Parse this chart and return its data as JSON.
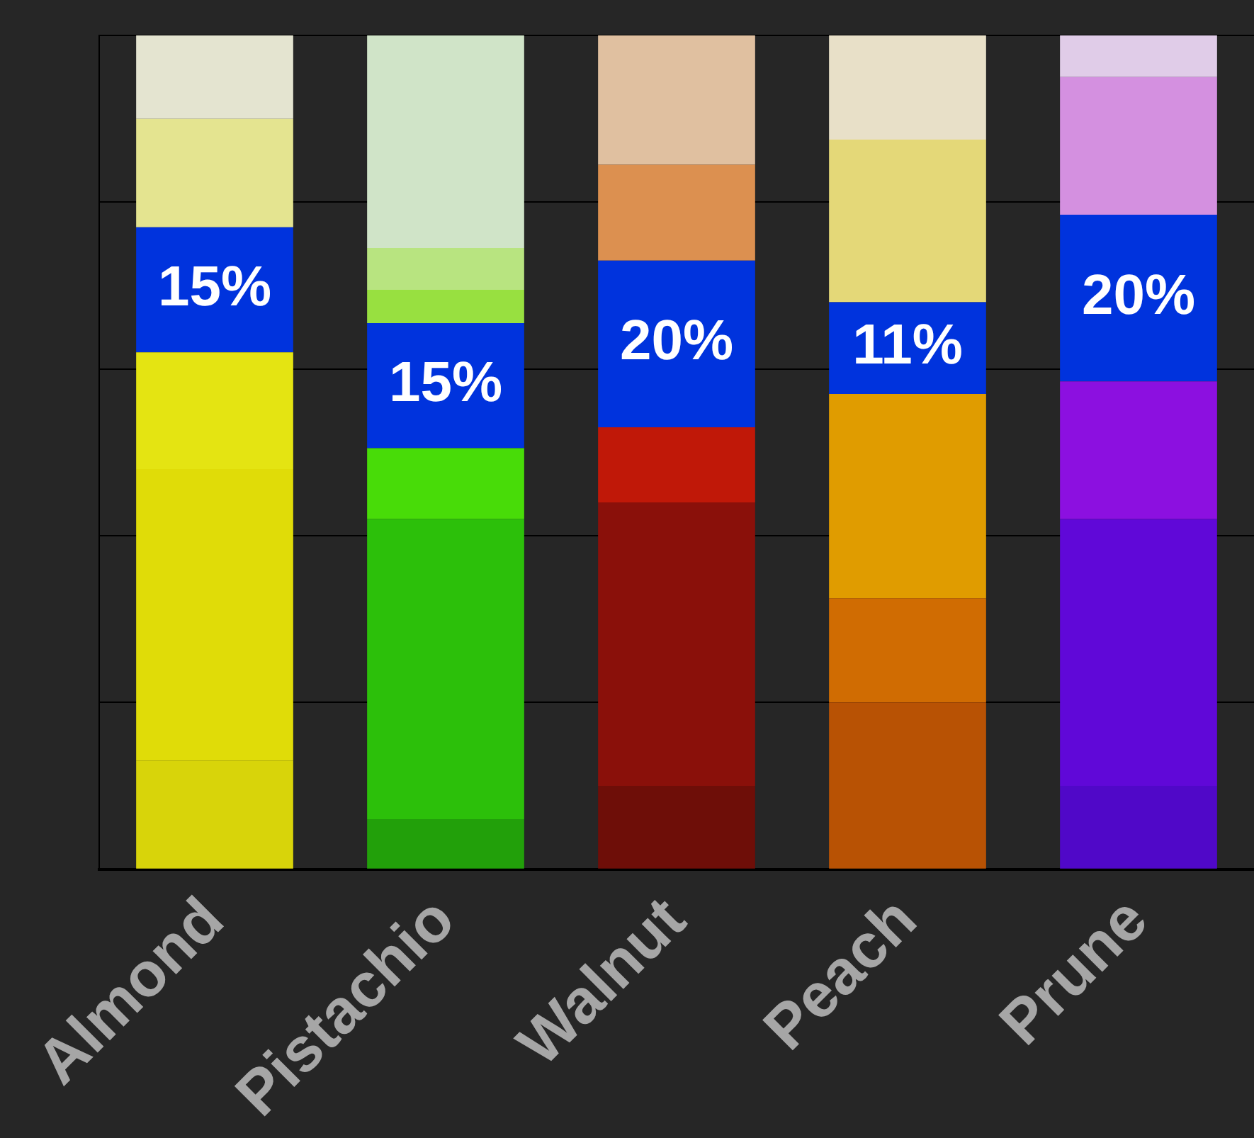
{
  "chart_data": {
    "type": "bar",
    "stacked": true,
    "categories": [
      "Almond",
      "Pistachio",
      "Walnut",
      "Peach",
      "Prune"
    ],
    "series": [
      {
        "colors": [
          "#d8d40a",
          "#22a00a",
          "#6e0e08",
          "#b85204",
          "#5008c8"
        ],
        "values": [
          13,
          6,
          10,
          20,
          10
        ]
      },
      {
        "colors": [
          "#e0dc08",
          "#2cc00a",
          "#8a100a",
          "#d06c02",
          "#6008d8"
        ],
        "values": [
          35,
          36,
          34,
          12.5,
          32
        ]
      },
      {
        "colors": [
          "#e4e412",
          "#48dc08",
          "#c01808",
          "#e09c00",
          "#8c10e0"
        ],
        "values": [
          14,
          8.5,
          9,
          24.5,
          16.5
        ]
      },
      {
        "color": "#0033dd",
        "values": [
          15,
          15,
          20,
          11,
          20
        ],
        "value_labels": [
          "15%",
          "15%",
          "20%",
          "11%",
          "20%"
        ]
      },
      {
        "colors": [
          "#e4e490",
          "#98e040",
          "#dc9050",
          "#e4d878",
          "#d490e0"
        ],
        "values": [
          13,
          4,
          11.5,
          19.5,
          16.5
        ]
      },
      {
        "colors": [
          "#e4e4d0",
          "#b8e480",
          "#e0c0a0",
          "#e8e0c8",
          "#e0cce8"
        ],
        "values": [
          10,
          5,
          15.5,
          12.5,
          5
        ]
      },
      {
        "colors": [
          "#e4e4d0",
          "#d0e4c8",
          "#e0c0a0",
          "#e8e0c8",
          "#e0cce8"
        ],
        "values": [
          null,
          25.5,
          null,
          null,
          null
        ]
      }
    ],
    "ylim": [
      0,
      100
    ],
    "tick_labels": "x",
    "grid": "y",
    "legend": false
  }
}
